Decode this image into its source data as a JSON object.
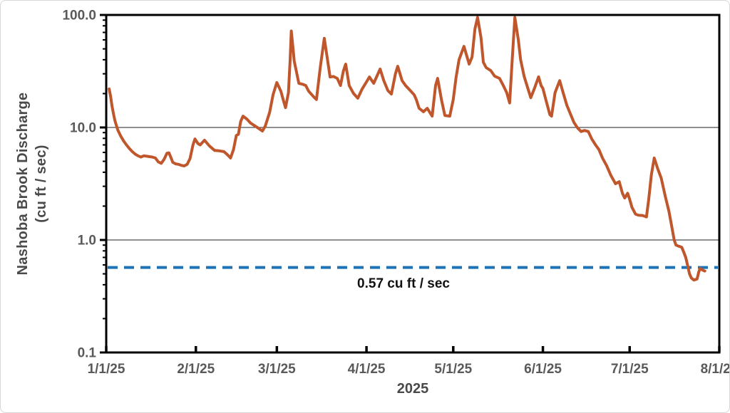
{
  "chart_data": {
    "type": "line",
    "title": "",
    "xlabel": "2025",
    "ylabel_line1": "Nashoba Brook Discharge",
    "ylabel_line2": "(cu ft / sec)",
    "y_scale": "log",
    "ylim": [
      0.1,
      100
    ],
    "grid": "horizontal-major",
    "y_ticks": [
      {
        "value": 100,
        "label": "100.0"
      },
      {
        "value": 10,
        "label": "10.0"
      },
      {
        "value": 1,
        "label": "1.0"
      },
      {
        "value": 0.1,
        "label": "0.1"
      }
    ],
    "x_range_days": [
      0,
      212
    ],
    "x_ticks": [
      {
        "day": 0,
        "label": "1/1/25"
      },
      {
        "day": 31,
        "label": "2/1/25"
      },
      {
        "day": 59,
        "label": "3/1/25"
      },
      {
        "day": 90,
        "label": "4/1/25"
      },
      {
        "day": 120,
        "label": "5/1/25"
      },
      {
        "day": 151,
        "label": "6/1/25"
      },
      {
        "day": 181,
        "label": "7/1/25"
      },
      {
        "day": 212,
        "label": "8/1/25"
      }
    ],
    "reference_line": {
      "value": 0.57,
      "label": "0.57 cu ft / sec",
      "color": "#1E73B7",
      "style": "dashed"
    },
    "series": [
      {
        "name": "Nashoba Brook Discharge (cu ft / sec), days since 1/1/25",
        "color": "#C0562B",
        "points": [
          [
            1,
            22
          ],
          [
            1.5,
            19
          ],
          [
            2,
            15.5
          ],
          [
            2.5,
            13.3
          ],
          [
            3,
            11.5
          ],
          [
            4,
            9.5
          ],
          [
            5,
            8.4
          ],
          [
            6,
            7.6
          ],
          [
            7,
            7.0
          ],
          [
            8,
            6.5
          ],
          [
            9,
            6.1
          ],
          [
            10,
            5.8
          ],
          [
            11,
            5.6
          ],
          [
            12,
            5.45
          ],
          [
            13,
            5.6
          ],
          [
            14,
            5.55
          ],
          [
            15,
            5.5
          ],
          [
            16,
            5.45
          ],
          [
            17,
            5.35
          ],
          [
            18,
            4.95
          ],
          [
            19,
            4.8
          ],
          [
            20,
            5.2
          ],
          [
            21,
            5.9
          ],
          [
            21.7,
            5.95
          ],
          [
            22.5,
            5.3
          ],
          [
            23,
            4.9
          ],
          [
            24,
            4.75
          ],
          [
            25,
            4.7
          ],
          [
            26,
            4.6
          ],
          [
            27,
            4.55
          ],
          [
            28,
            4.7
          ],
          [
            29,
            5.3
          ],
          [
            30,
            7.0
          ],
          [
            30.7,
            7.9
          ],
          [
            31.7,
            7.2
          ],
          [
            32.5,
            7.0
          ],
          [
            34,
            7.7
          ],
          [
            35.7,
            6.85
          ],
          [
            37.5,
            6.25
          ],
          [
            39,
            6.2
          ],
          [
            40.7,
            6.1
          ],
          [
            42,
            5.7
          ],
          [
            43,
            5.35
          ],
          [
            44,
            6.35
          ],
          [
            45,
            8.5
          ],
          [
            45.7,
            8.7
          ],
          [
            46.5,
            11.3
          ],
          [
            47.3,
            12.6
          ],
          [
            48.6,
            11.9
          ],
          [
            50,
            10.9
          ],
          [
            52,
            10.1
          ],
          [
            54,
            9.3
          ],
          [
            55,
            10.3
          ],
          [
            56.5,
            13.6
          ],
          [
            57.7,
            19.6
          ],
          [
            59,
            25.1
          ],
          [
            60.4,
            21
          ],
          [
            61.4,
            16.9
          ],
          [
            62,
            15
          ],
          [
            63,
            20.4
          ],
          [
            63.6,
            40
          ],
          [
            64,
            72
          ],
          [
            64.6,
            50
          ],
          [
            65,
            39
          ],
          [
            66,
            29.4
          ],
          [
            66.6,
            24.7
          ],
          [
            68,
            24.2
          ],
          [
            69,
            23.6
          ],
          [
            70,
            21
          ],
          [
            72,
            18.4
          ],
          [
            72.7,
            17.7
          ],
          [
            74,
            34
          ],
          [
            75.4,
            62
          ],
          [
            76.4,
            42
          ],
          [
            77.4,
            28.1
          ],
          [
            78.6,
            28.4
          ],
          [
            79.9,
            27.3
          ],
          [
            81,
            23.6
          ],
          [
            82,
            31.6
          ],
          [
            82.8,
            36.6
          ],
          [
            84,
            23.6
          ],
          [
            85.5,
            20.1
          ],
          [
            87,
            18.2
          ],
          [
            88.5,
            22
          ],
          [
            90,
            25.4
          ],
          [
            91,
            28.1
          ],
          [
            92.5,
            24.7
          ],
          [
            94.7,
            33.1
          ],
          [
            96,
            26
          ],
          [
            97.4,
            21.3
          ],
          [
            98.6,
            19.8
          ],
          [
            100,
            30
          ],
          [
            100.8,
            35
          ],
          [
            102.3,
            26.1
          ],
          [
            103.5,
            23.6
          ],
          [
            105,
            21.5
          ],
          [
            106.5,
            19.5
          ],
          [
            107.2,
            17.7
          ],
          [
            108.2,
            14.8
          ],
          [
            109.7,
            13.8
          ],
          [
            111,
            14.8
          ],
          [
            112.7,
            12.6
          ],
          [
            113.9,
            23.6
          ],
          [
            114.6,
            27.3
          ],
          [
            115.9,
            17.7
          ],
          [
            117.1,
            12.8
          ],
          [
            118.8,
            12.6
          ],
          [
            120,
            17.7
          ],
          [
            121,
            28
          ],
          [
            122,
            40
          ],
          [
            123.7,
            52.6
          ],
          [
            125.5,
            36.6
          ],
          [
            126.5,
            42.3
          ],
          [
            127.5,
            75
          ],
          [
            128.4,
            95
          ],
          [
            129.6,
            63
          ],
          [
            130.4,
            38
          ],
          [
            131.4,
            34
          ],
          [
            133,
            32
          ],
          [
            134.3,
            28.6
          ],
          [
            136,
            27.3
          ],
          [
            137.3,
            23.6
          ],
          [
            138.5,
            20.4
          ],
          [
            139.5,
            16.5
          ],
          [
            140.4,
            40
          ],
          [
            141.3,
            95
          ],
          [
            142.5,
            60
          ],
          [
            143.3,
            40
          ],
          [
            144.5,
            28.5
          ],
          [
            145.5,
            23.6
          ],
          [
            146.8,
            18.4
          ],
          [
            148,
            22
          ],
          [
            149.5,
            28.2
          ],
          [
            150.4,
            23.5
          ],
          [
            151,
            22.3
          ],
          [
            152,
            17.7
          ],
          [
            153.4,
            13
          ],
          [
            154,
            12.6
          ],
          [
            155.2,
            20.4
          ],
          [
            156.8,
            26.1
          ],
          [
            158,
            20.4
          ],
          [
            159.3,
            15.7
          ],
          [
            160.5,
            13.2
          ],
          [
            161.7,
            11.1
          ],
          [
            163,
            9.9
          ],
          [
            164.2,
            9.2
          ],
          [
            165.4,
            9.4
          ],
          [
            166.7,
            9.2
          ],
          [
            167.9,
            7.9
          ],
          [
            169.2,
            7.0
          ],
          [
            170.4,
            6.35
          ],
          [
            171.6,
            5.35
          ],
          [
            173,
            4.6
          ],
          [
            174.5,
            3.75
          ],
          [
            176.1,
            3.16
          ],
          [
            177.4,
            3.3
          ],
          [
            178.5,
            2.6
          ],
          [
            179.3,
            2.36
          ],
          [
            180.3,
            2.6
          ],
          [
            181,
            2.3
          ],
          [
            181.8,
            1.95
          ],
          [
            183,
            1.7
          ],
          [
            184,
            1.66
          ],
          [
            185.5,
            1.65
          ],
          [
            186.8,
            1.6
          ],
          [
            187.6,
            2.3
          ],
          [
            188.5,
            3.8
          ],
          [
            189.5,
            5.35
          ],
          [
            190.7,
            4.3
          ],
          [
            191.9,
            3.55
          ],
          [
            193.4,
            2.4
          ],
          [
            194.6,
            1.79
          ],
          [
            195.4,
            1.38
          ],
          [
            196.4,
            1.0
          ],
          [
            197,
            0.9
          ],
          [
            198,
            0.88
          ],
          [
            199,
            0.86
          ],
          [
            199.7,
            0.78
          ],
          [
            200.4,
            0.7
          ],
          [
            201,
            0.6
          ],
          [
            201.7,
            0.5
          ],
          [
            202.3,
            0.46
          ],
          [
            203.2,
            0.44
          ],
          [
            204.3,
            0.45
          ],
          [
            204.9,
            0.52
          ],
          [
            205.4,
            0.56
          ],
          [
            206.2,
            0.54
          ],
          [
            207,
            0.53
          ]
        ]
      }
    ],
    "colors": {
      "series": "#C0562B",
      "reference": "#1E73B7",
      "axis": "#000000",
      "gridline": "#222222",
      "tick_label": "#595959",
      "axis_title": "#4a4a4a",
      "annotation_text": "#111111"
    }
  }
}
